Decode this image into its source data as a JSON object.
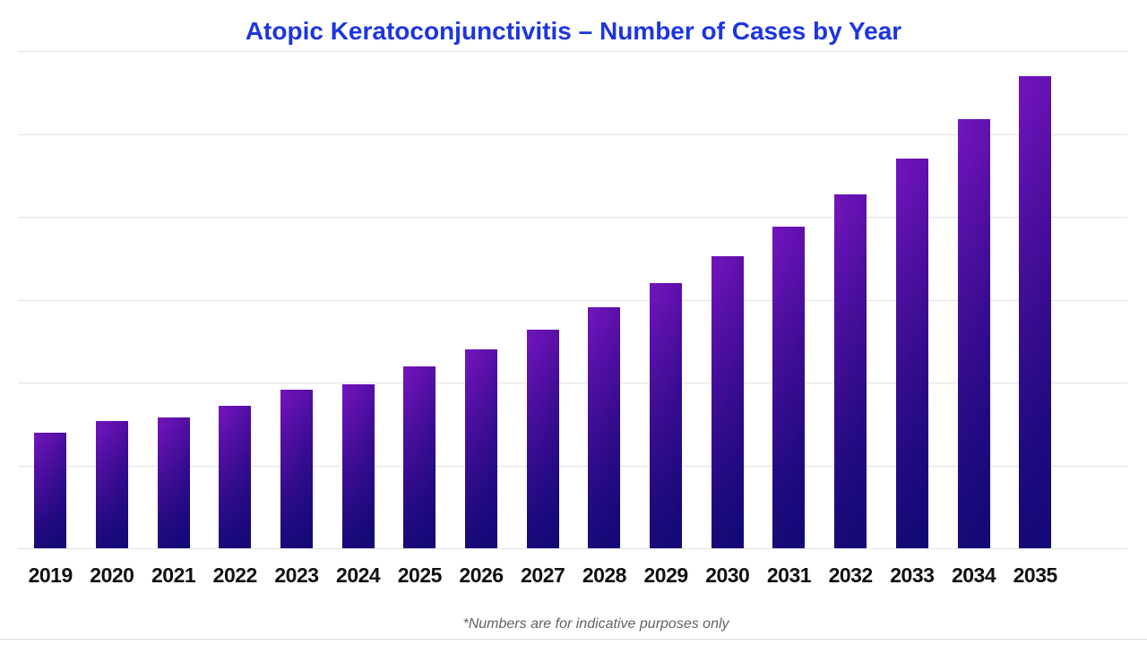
{
  "title": "Atopic Keratoconjunctivitis – Number of Cases by Year",
  "footnote": "*Numbers are for indicative purposes only",
  "colors": {
    "title": "#1d35e0",
    "grid": "#e2e2e2",
    "bar_gradient_top_left": "#7114bc",
    "bar_gradient_top_right": "#2c0b90",
    "bar_gradient_bottom": "#0e0660",
    "x_label": "#111111",
    "footnote": "#5f6368",
    "background": "#ffffff"
  },
  "chart_data": {
    "type": "bar",
    "title": "Atopic Keratoconjunctivitis – Number of Cases by Year",
    "categories": [
      "2019",
      "2020",
      "2021",
      "2022",
      "2023",
      "2024",
      "2025",
      "2026",
      "2027",
      "2028",
      "2029",
      "2030",
      "2031",
      "2032",
      "2033",
      "2034",
      "2035"
    ],
    "values": [
      13.9,
      15.3,
      15.8,
      17.2,
      19.1,
      19.8,
      21.9,
      24.0,
      26.4,
      29.1,
      32.0,
      35.2,
      38.8,
      42.7,
      47.0,
      51.8,
      57.0
    ],
    "value_note": "unlabeled y-axis; values estimated from gridlines, indicative units",
    "xlabel": "",
    "ylabel": "",
    "ylim": [
      0,
      60
    ],
    "gridline_step": 10,
    "grid": true,
    "legend": false,
    "annotation": "*Numbers are for indicative purposes only"
  }
}
